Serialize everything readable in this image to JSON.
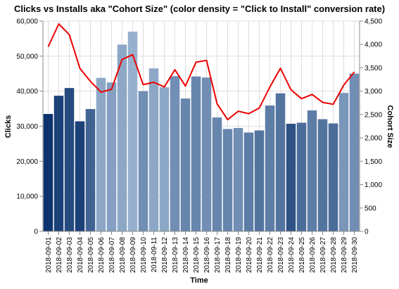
{
  "chart_data": {
    "type": "bar",
    "title": "Clicks vs Installs aka \"Cohort Size\" (color density = \"Click to Install\" conversion rate)",
    "xlabel": "Time",
    "ylabel": "Clicks",
    "y2label": "Cohort Size",
    "ylim": [
      0,
      60000
    ],
    "y2lim": [
      0,
      4500
    ],
    "yticks": [
      0,
      10000,
      20000,
      30000,
      40000,
      50000,
      60000
    ],
    "y2ticks": [
      0,
      500,
      1000,
      1500,
      2000,
      2500,
      3000,
      3500,
      4000,
      4500
    ],
    "grid": true,
    "line_color": "#ee0000",
    "bar_color_scale": [
      "#c6dbef",
      "#08306b"
    ],
    "categories": [
      "2018-09-01",
      "2018-09-02",
      "2018-09-03",
      "2018-09-04",
      "2018-09-05",
      "2018-09-06",
      "2018-09-07",
      "2018-09-08",
      "2018-09-09",
      "2018-09-10",
      "2018-09-11",
      "2018-09-12",
      "2018-09-13",
      "2018-09-14",
      "2018-09-15",
      "2018-09-16",
      "2018-09-17",
      "2018-09-18",
      "2018-09-19",
      "2018-09-20",
      "2018-09-21",
      "2018-09-22",
      "2018-09-23",
      "2018-09-24",
      "2018-09-25",
      "2018-09-26",
      "2018-09-27",
      "2018-09-28",
      "2018-09-29",
      "2018-09-30"
    ],
    "series": [
      {
        "kind": "bar",
        "axis": "left",
        "values": [
          33500,
          38700,
          40900,
          31400,
          34900,
          43800,
          42500,
          53300,
          57000,
          40000,
          46500,
          41100,
          44300,
          37900,
          44200,
          43900,
          32500,
          29200,
          29500,
          28200,
          28800,
          35900,
          39400,
          30700,
          31000,
          34500,
          32000,
          30800,
          39500,
          45000
        ]
      },
      {
        "kind": "line",
        "axis": "right",
        "values": [
          3950,
          4440,
          4210,
          3490,
          3210,
          2980,
          3040,
          3680,
          3780,
          3140,
          3190,
          3090,
          3460,
          3110,
          3620,
          3660,
          2730,
          2390,
          2570,
          2520,
          2640,
          3090,
          3490,
          3030,
          2840,
          2930,
          2760,
          2720,
          3130,
          3410
        ]
      }
    ],
    "conversion_density": [
      0.98,
      0.9,
      0.85,
      0.9,
      0.7,
      0.3,
      0.35,
      0.3,
      0.25,
      0.45,
      0.3,
      0.3,
      0.45,
      0.5,
      0.5,
      0.45,
      0.5,
      0.5,
      0.45,
      0.55,
      0.6,
      0.55,
      0.6,
      0.8,
      0.65,
      0.55,
      0.6,
      0.65,
      0.4,
      0.45
    ]
  }
}
